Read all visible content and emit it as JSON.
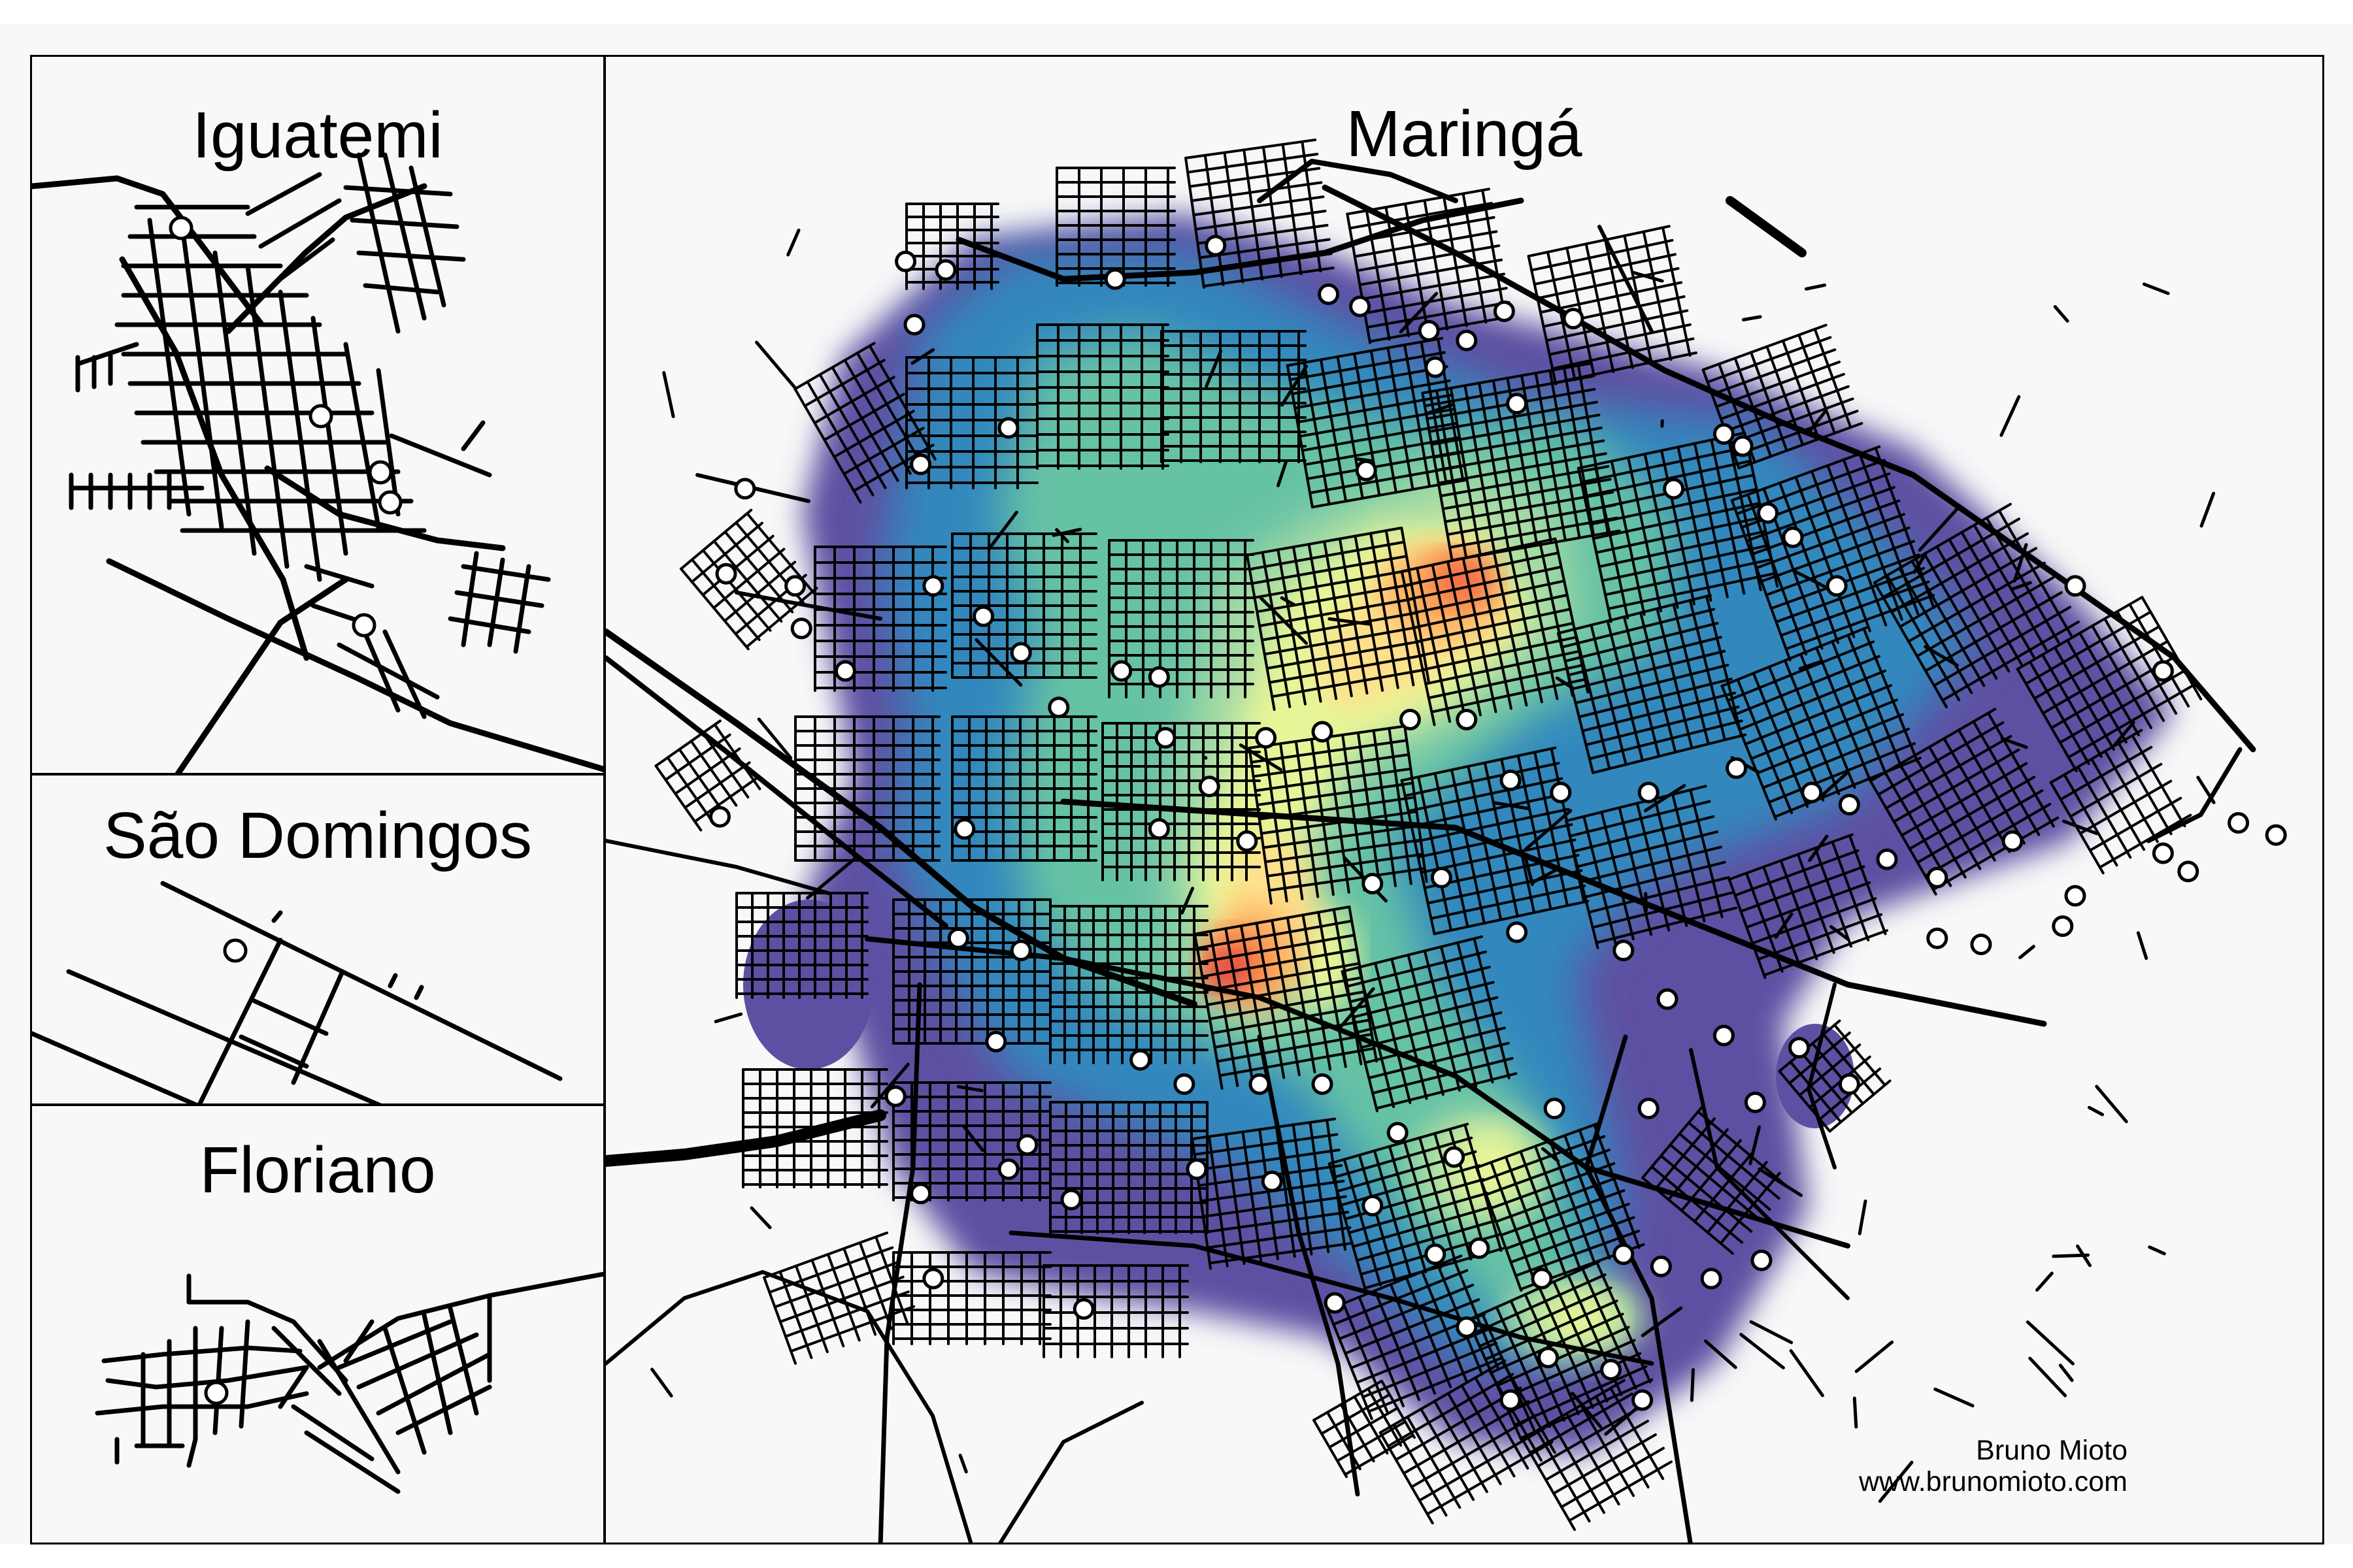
{
  "panels": {
    "iguatemi": {
      "title": "Iguatemi"
    },
    "sao_domingos": {
      "title": "São Domingos"
    },
    "floriano": {
      "title": "Floriano"
    },
    "maringa": {
      "title": "Maringá"
    }
  },
  "credit": {
    "author": "Bruno Mioto",
    "website": "www.brunomioto.com"
  },
  "map_style": {
    "road_color": "#000000",
    "marker_fill": "#ffffff",
    "marker_stroke": "#000000",
    "density_scale": "spectral",
    "density_colors": [
      "#5e4fa2",
      "#3288bd",
      "#66c2a5",
      "#abdda4",
      "#e6f598",
      "#fee08b",
      "#fdae61",
      "#f46d43",
      "#d53e4f"
    ]
  }
}
